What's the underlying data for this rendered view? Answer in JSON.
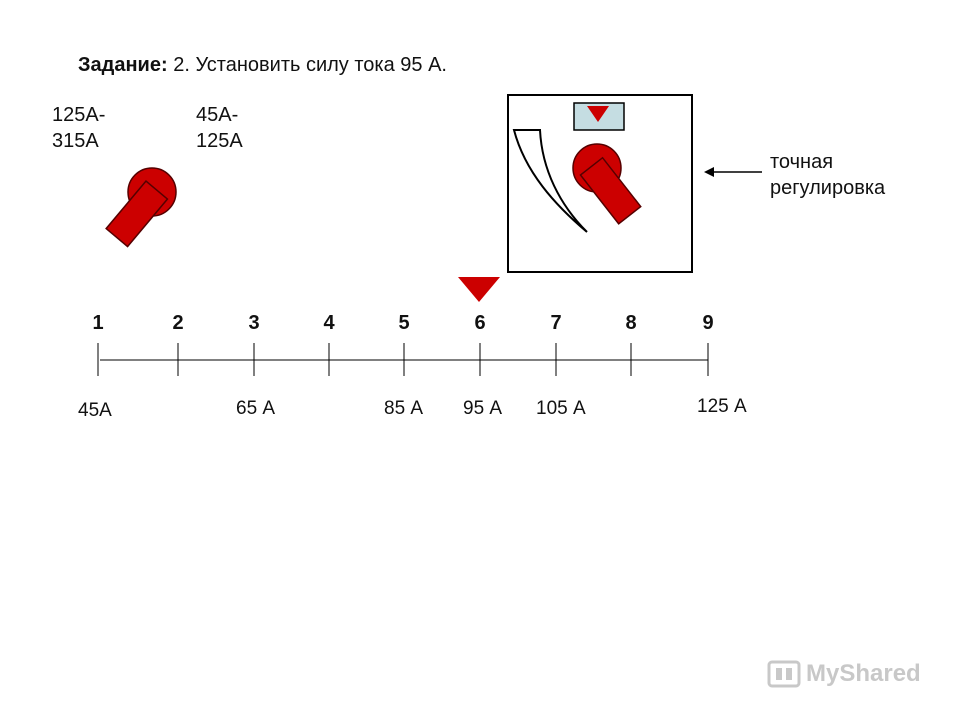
{
  "task": {
    "prefix": "Задание:",
    "text": "2. Установить силу тока 95 А."
  },
  "ranges": {
    "left": "125А- 315А",
    "right": "45А- 125А"
  },
  "fine_adjust_label": "точная регулировка",
  "scale": {
    "positions": [
      "1",
      "2",
      "3",
      "4",
      "5",
      "6",
      "7",
      "8",
      "9"
    ],
    "current_labels": [
      {
        "pos": 1,
        "text": "45А"
      },
      {
        "pos": 3,
        "text": "65 А"
      },
      {
        "pos": 5,
        "text": "85 А"
      },
      {
        "pos": 6,
        "text": "95 А"
      },
      {
        "pos": 7,
        "text": "105 А"
      },
      {
        "pos": 9,
        "text": "125 А"
      }
    ],
    "pointer_at": 6
  },
  "colors": {
    "knob": "#cc0000",
    "pointer": "#cc0000",
    "indicator_window": "#c5dde2"
  },
  "watermark": {
    "icon": "mysh-icon",
    "text": "MyShared"
  }
}
